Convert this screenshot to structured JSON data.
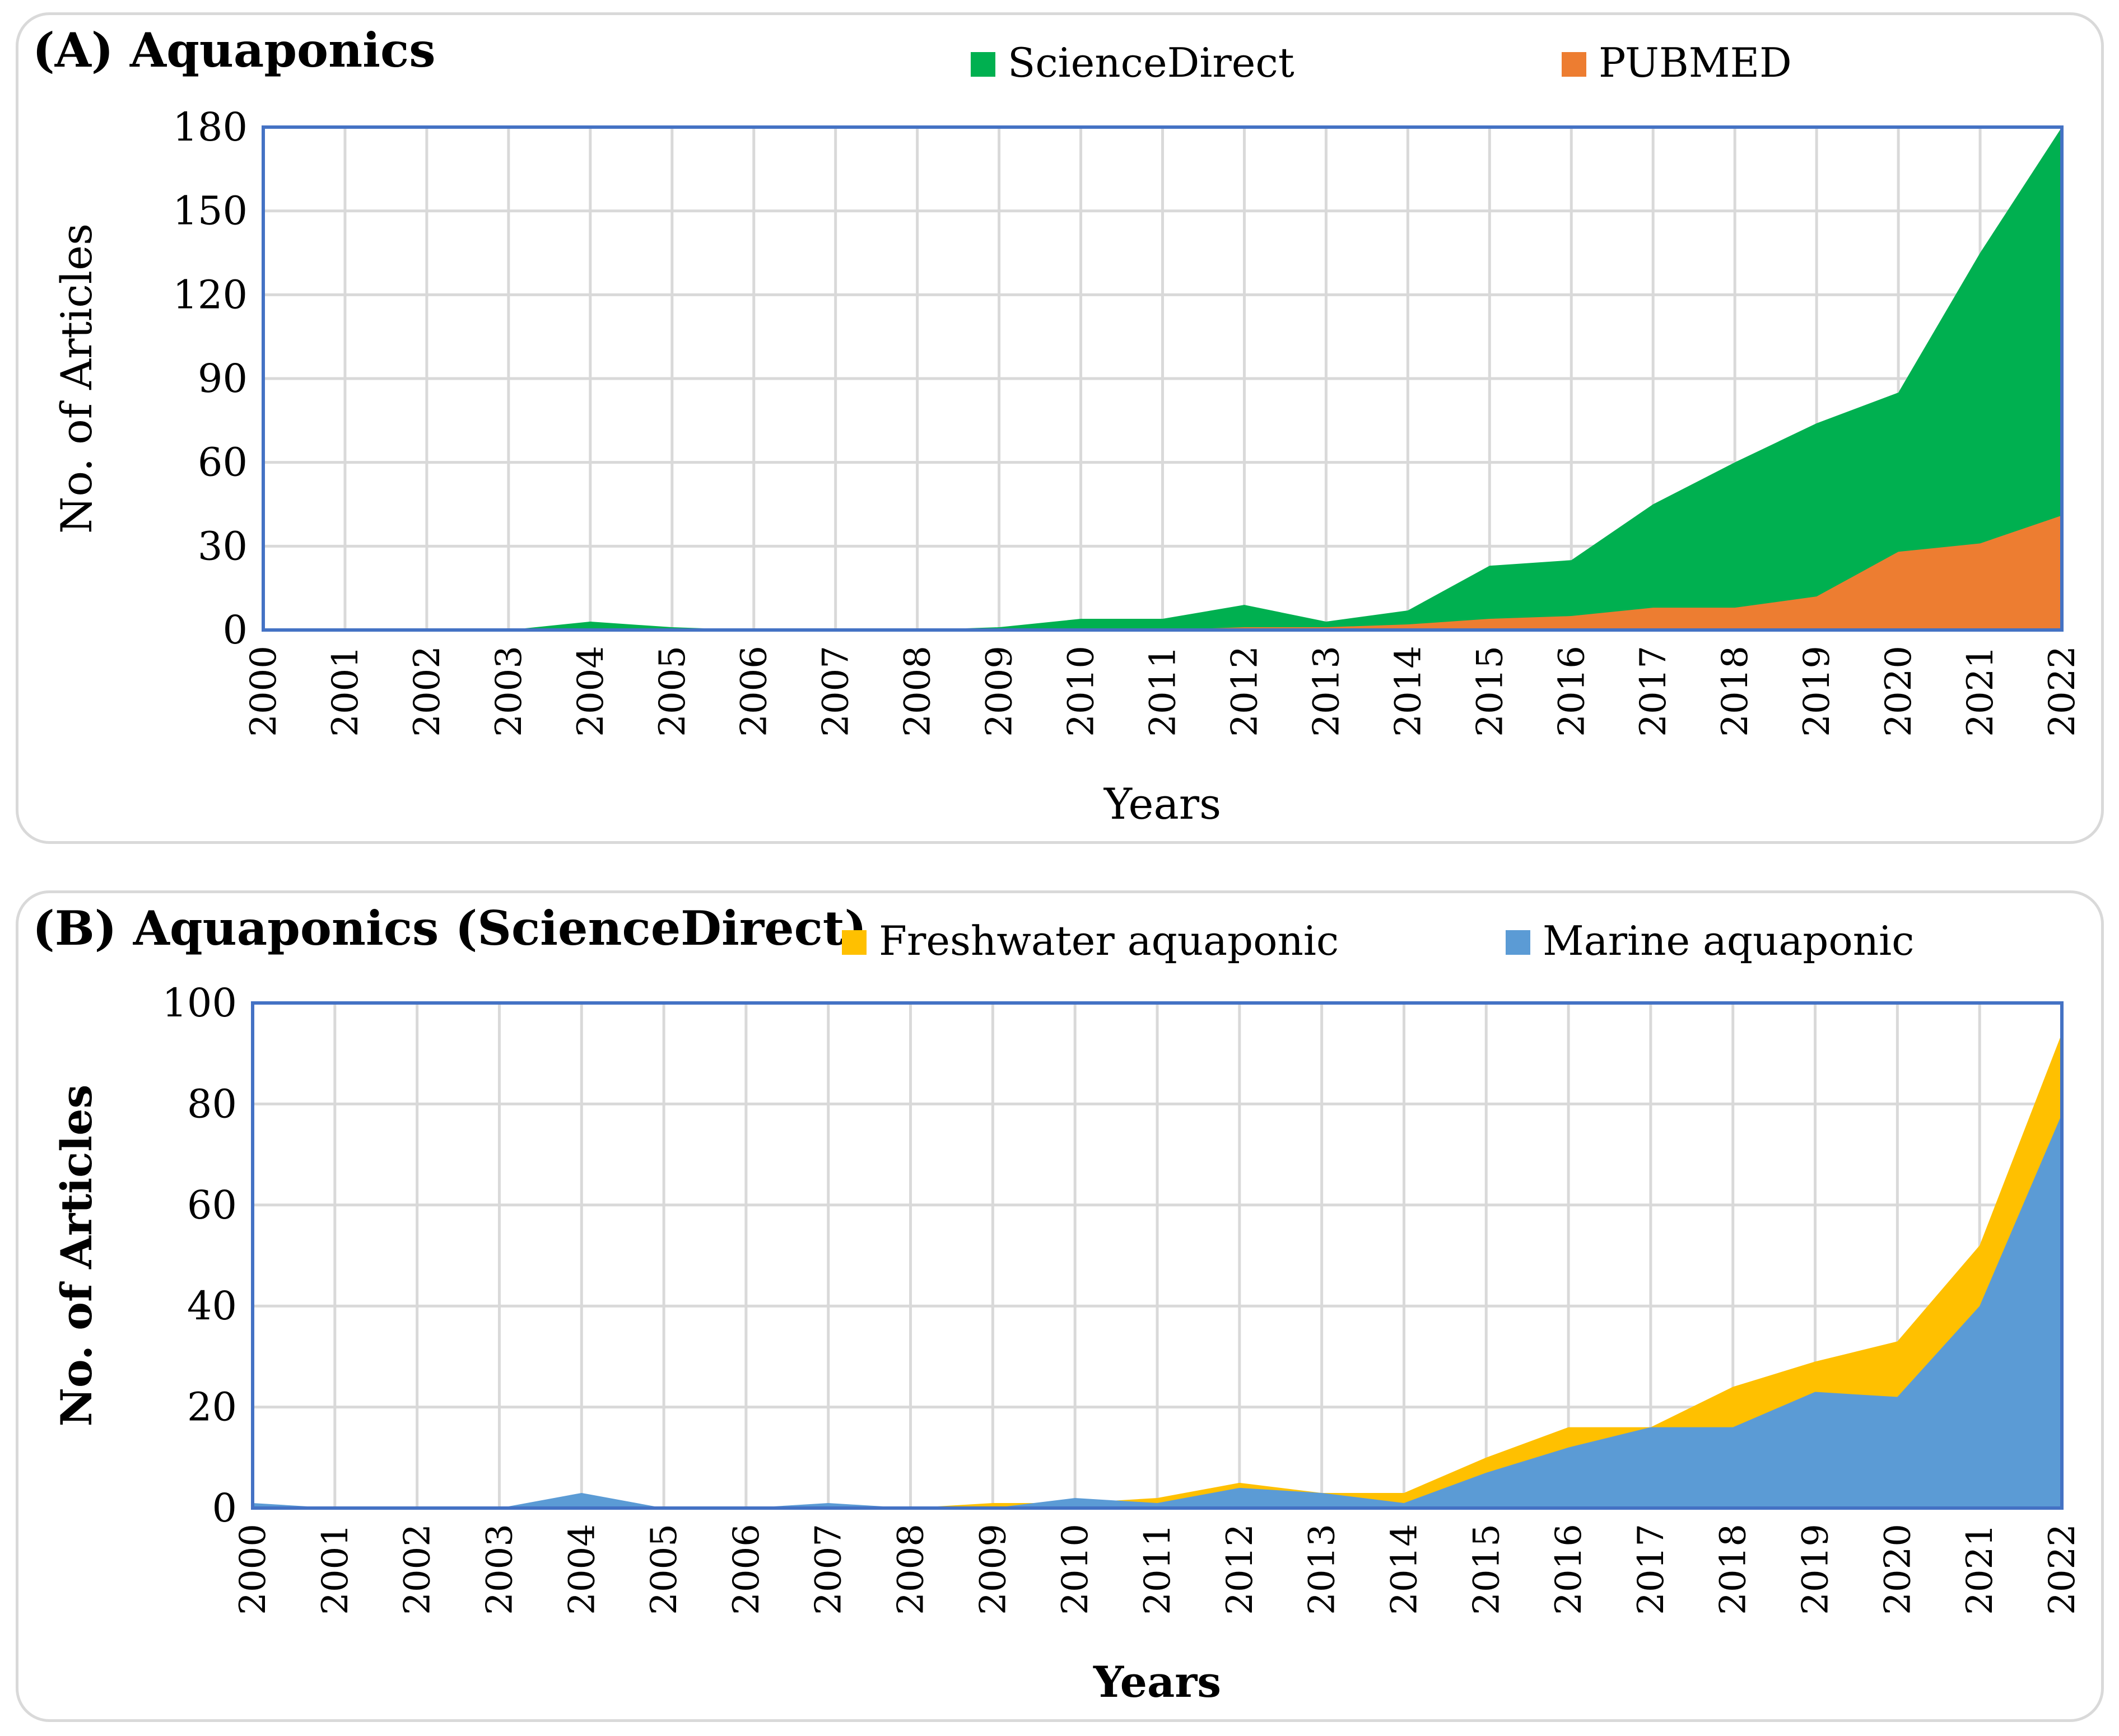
{
  "chart_data": [
    {
      "type": "area",
      "stacked": false,
      "title": "(A) Aquaponics",
      "xlabel": "Years",
      "ylabel": "No. of Articles",
      "ylim": [
        0,
        180
      ],
      "yticks": [
        "0",
        "30",
        "60",
        "90",
        "120",
        "150",
        "180"
      ],
      "grid": true,
      "legend_position": "top",
      "categories": [
        "2000",
        "2001",
        "2002",
        "2003",
        "2004",
        "2005",
        "2006",
        "2007",
        "2008",
        "2009",
        "2010",
        "2011",
        "2012",
        "2013",
        "2014",
        "2015",
        "2016",
        "2017",
        "2018",
        "2019",
        "2020",
        "2021",
        "2022"
      ],
      "series": [
        {
          "name": "ScienceDirect",
          "color": "#00b050",
          "values": [
            0,
            0,
            0,
            0,
            3,
            1,
            0,
            0,
            0,
            1,
            4,
            4,
            9,
            3,
            7,
            23,
            25,
            45,
            60,
            74,
            85,
            135,
            180
          ]
        },
        {
          "name": "PUBMED",
          "color": "#ed7d31",
          "values": [
            0,
            0,
            0,
            0,
            0,
            0,
            0,
            0,
            0,
            0,
            0,
            0,
            1,
            1,
            2,
            4,
            5,
            8,
            8,
            12,
            28,
            31,
            41
          ]
        }
      ]
    },
    {
      "type": "area",
      "stacked": false,
      "title": "(B) Aquaponics (ScienceDirect)",
      "xlabel": "Years",
      "ylabel": "No. of Articles",
      "ylim": [
        0,
        100
      ],
      "yticks": [
        "0",
        "20",
        "40",
        "60",
        "80",
        "100"
      ],
      "grid": true,
      "legend_position": "top",
      "categories": [
        "2000",
        "2001",
        "2002",
        "2003",
        "2004",
        "2005",
        "2006",
        "2007",
        "2008",
        "2009",
        "2010",
        "2011",
        "2012",
        "2013",
        "2014",
        "2015",
        "2016",
        "2017",
        "2018",
        "2019",
        "2020",
        "2021",
        "2022"
      ],
      "series": [
        {
          "name": "Freshwater aquaponic",
          "color": "#ffc000",
          "values": [
            0,
            0,
            0,
            0,
            0,
            0,
            0,
            0,
            0,
            1,
            1,
            2,
            5,
            3,
            3,
            10,
            16,
            16,
            24,
            29,
            33,
            52,
            94
          ]
        },
        {
          "name": "Marine aquaponic",
          "color": "#5b9bd5",
          "values": [
            1,
            0,
            0,
            0,
            3,
            0,
            0,
            1,
            0,
            0,
            2,
            1,
            4,
            3,
            1,
            7,
            12,
            16,
            16,
            23,
            22,
            40,
            78
          ]
        }
      ]
    }
  ]
}
